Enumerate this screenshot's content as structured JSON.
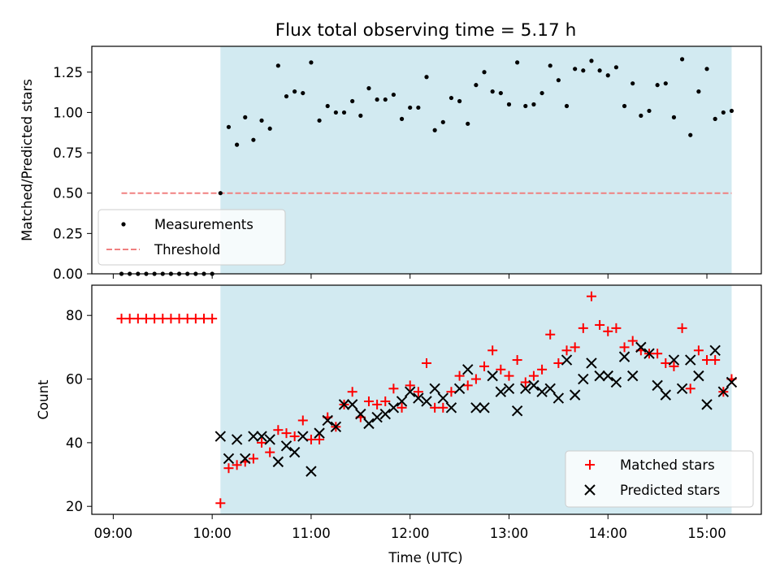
{
  "figure": {
    "title": "Flux total observing time = 5.17 h",
    "xlabel": "Time (UTC)",
    "background": "#ffffff",
    "shade_color": "#add8e6"
  },
  "chart_data": [
    {
      "type": "scatter",
      "title": "Flux total observing time = 5.17 h",
      "ylabel": "Matched/Predicted stars",
      "xlabel": "",
      "xlim": [
        "08:47",
        "15:33"
      ],
      "ylim": [
        0,
        1.41
      ],
      "x_ticks": [
        "09:00",
        "10:00",
        "11:00",
        "12:00",
        "13:00",
        "14:00",
        "15:00"
      ],
      "y_ticks": [
        "0.00",
        "0.25",
        "0.50",
        "0.75",
        "1.00",
        "1.25"
      ],
      "y_tick_values": [
        0,
        0.25,
        0.5,
        0.75,
        1.0,
        1.25
      ],
      "grid": false,
      "legend_position": "lower-left",
      "shaded_interval": [
        "10:05",
        "15:15"
      ],
      "series": [
        {
          "name": "Measurements",
          "kind": "dots",
          "color": "#000000",
          "points": [
            [
              "09:05",
              0
            ],
            [
              "09:10",
              0
            ],
            [
              "09:15",
              0
            ],
            [
              "09:20",
              0
            ],
            [
              "09:25",
              0
            ],
            [
              "09:30",
              0
            ],
            [
              "09:35",
              0
            ],
            [
              "09:40",
              0
            ],
            [
              "09:45",
              0
            ],
            [
              "09:50",
              0
            ],
            [
              "09:55",
              0
            ],
            [
              "10:00",
              0
            ],
            [
              "10:05",
              0.5
            ],
            [
              "10:10",
              0.91
            ],
            [
              "10:15",
              0.8
            ],
            [
              "10:20",
              0.97
            ],
            [
              "10:25",
              0.83
            ],
            [
              "10:30",
              0.95
            ],
            [
              "10:35",
              0.9
            ],
            [
              "10:40",
              1.29
            ],
            [
              "10:45",
              1.1
            ],
            [
              "10:50",
              1.13
            ],
            [
              "10:55",
              1.12
            ],
            [
              "11:00",
              1.31
            ],
            [
              "11:05",
              0.95
            ],
            [
              "11:10",
              1.04
            ],
            [
              "11:15",
              1.0
            ],
            [
              "11:20",
              1.0
            ],
            [
              "11:25",
              1.07
            ],
            [
              "11:30",
              0.98
            ],
            [
              "11:35",
              1.15
            ],
            [
              "11:40",
              1.08
            ],
            [
              "11:45",
              1.08
            ],
            [
              "11:50",
              1.11
            ],
            [
              "11:55",
              0.96
            ],
            [
              "12:00",
              1.03
            ],
            [
              "12:05",
              1.03
            ],
            [
              "12:10",
              1.22
            ],
            [
              "12:15",
              0.89
            ],
            [
              "12:20",
              0.94
            ],
            [
              "12:25",
              1.09
            ],
            [
              "12:30",
              1.07
            ],
            [
              "12:35",
              0.93
            ],
            [
              "12:40",
              1.17
            ],
            [
              "12:45",
              1.25
            ],
            [
              "12:50",
              1.13
            ],
            [
              "12:55",
              1.12
            ],
            [
              "13:00",
              1.05
            ],
            [
              "13:05",
              1.31
            ],
            [
              "13:10",
              1.04
            ],
            [
              "13:15",
              1.05
            ],
            [
              "13:20",
              1.12
            ],
            [
              "13:25",
              1.29
            ],
            [
              "13:30",
              1.2
            ],
            [
              "13:35",
              1.04
            ],
            [
              "13:40",
              1.27
            ],
            [
              "13:45",
              1.26
            ],
            [
              "13:50",
              1.32
            ],
            [
              "13:55",
              1.26
            ],
            [
              "14:00",
              1.23
            ],
            [
              "14:05",
              1.28
            ],
            [
              "14:10",
              1.04
            ],
            [
              "14:15",
              1.18
            ],
            [
              "14:20",
              0.98
            ],
            [
              "14:25",
              1.01
            ],
            [
              "14:30",
              1.17
            ],
            [
              "14:35",
              1.18
            ],
            [
              "14:40",
              0.97
            ],
            [
              "14:45",
              1.33
            ],
            [
              "14:50",
              0.86
            ],
            [
              "14:55",
              1.13
            ],
            [
              "15:00",
              1.27
            ],
            [
              "15:05",
              0.96
            ],
            [
              "15:10",
              1.0
            ],
            [
              "15:15",
              1.01
            ]
          ]
        },
        {
          "name": "Threshold",
          "kind": "dashed-line",
          "color": "#f08080",
          "points": [
            [
              "09:05",
              0.5
            ],
            [
              "15:15",
              0.5
            ]
          ]
        }
      ]
    },
    {
      "type": "scatter",
      "title": "",
      "ylabel": "Count",
      "xlabel": "Time (UTC)",
      "xlim": [
        "08:47",
        "15:33"
      ],
      "ylim": [
        17.5,
        89.5
      ],
      "x_ticks": [
        "09:00",
        "10:00",
        "11:00",
        "12:00",
        "13:00",
        "14:00",
        "15:00"
      ],
      "y_ticks": [
        "20",
        "40",
        "60",
        "80"
      ],
      "y_tick_values": [
        20,
        40,
        60,
        80
      ],
      "grid": false,
      "legend_position": "lower-right",
      "shaded_interval": [
        "10:05",
        "15:15"
      ],
      "series": [
        {
          "name": "Matched stars",
          "kind": "plus",
          "color": "#ff0000",
          "points": [
            [
              "09:05",
              79
            ],
            [
              "09:10",
              79
            ],
            [
              "09:15",
              79
            ],
            [
              "09:20",
              79
            ],
            [
              "09:25",
              79
            ],
            [
              "09:30",
              79
            ],
            [
              "09:35",
              79
            ],
            [
              "09:40",
              79
            ],
            [
              "09:45",
              79
            ],
            [
              "09:50",
              79
            ],
            [
              "09:55",
              79
            ],
            [
              "10:00",
              79
            ],
            [
              "10:05",
              21
            ],
            [
              "10:10",
              32
            ],
            [
              "10:15",
              33
            ],
            [
              "10:20",
              34
            ],
            [
              "10:25",
              35
            ],
            [
              "10:30",
              40
            ],
            [
              "10:35",
              37
            ],
            [
              "10:40",
              44
            ],
            [
              "10:45",
              43
            ],
            [
              "10:50",
              42
            ],
            [
              "10:55",
              47
            ],
            [
              "11:00",
              41
            ],
            [
              "11:05",
              41
            ],
            [
              "11:10",
              48
            ],
            [
              "11:15",
              45
            ],
            [
              "11:20",
              52
            ],
            [
              "11:25",
              56
            ],
            [
              "11:30",
              48
            ],
            [
              "11:35",
              53
            ],
            [
              "11:40",
              52
            ],
            [
              "11:45",
              53
            ],
            [
              "11:50",
              57
            ],
            [
              "11:55",
              51
            ],
            [
              "12:00",
              58
            ],
            [
              "12:05",
              56
            ],
            [
              "12:10",
              65
            ],
            [
              "12:15",
              51
            ],
            [
              "12:20",
              51
            ],
            [
              "12:25",
              56
            ],
            [
              "12:30",
              61
            ],
            [
              "12:35",
              58
            ],
            [
              "12:40",
              60
            ],
            [
              "12:45",
              64
            ],
            [
              "12:50",
              69
            ],
            [
              "12:55",
              63
            ],
            [
              "13:00",
              61
            ],
            [
              "13:05",
              66
            ],
            [
              "13:10",
              59
            ],
            [
              "13:15",
              61
            ],
            [
              "13:20",
              63
            ],
            [
              "13:25",
              74
            ],
            [
              "13:30",
              65
            ],
            [
              "13:35",
              69
            ],
            [
              "13:40",
              70
            ],
            [
              "13:45",
              76
            ],
            [
              "13:50",
              86
            ],
            [
              "13:55",
              77
            ],
            [
              "14:00",
              75
            ],
            [
              "14:05",
              76
            ],
            [
              "14:10",
              70
            ],
            [
              "14:15",
              72
            ],
            [
              "14:20",
              69
            ],
            [
              "14:25",
              68
            ],
            [
              "14:30",
              68
            ],
            [
              "14:35",
              65
            ],
            [
              "14:40",
              64
            ],
            [
              "14:45",
              76
            ],
            [
              "14:50",
              57
            ],
            [
              "14:55",
              69
            ],
            [
              "15:00",
              66
            ],
            [
              "15:05",
              66
            ],
            [
              "15:10",
              56
            ],
            [
              "15:15",
              60
            ]
          ]
        },
        {
          "name": "Predicted stars",
          "kind": "cross",
          "color": "#000000",
          "points": [
            [
              "10:05",
              42
            ],
            [
              "10:10",
              35
            ],
            [
              "10:15",
              41
            ],
            [
              "10:20",
              35
            ],
            [
              "10:25",
              42
            ],
            [
              "10:30",
              42
            ],
            [
              "10:35",
              41
            ],
            [
              "10:40",
              34
            ],
            [
              "10:45",
              39
            ],
            [
              "10:50",
              37
            ],
            [
              "10:55",
              42
            ],
            [
              "11:00",
              31
            ],
            [
              "11:05",
              43
            ],
            [
              "11:10",
              47
            ],
            [
              "11:15",
              45
            ],
            [
              "11:20",
              52
            ],
            [
              "11:25",
              52
            ],
            [
              "11:30",
              49
            ],
            [
              "11:35",
              46
            ],
            [
              "11:40",
              48
            ],
            [
              "11:45",
              49
            ],
            [
              "11:50",
              51
            ],
            [
              "11:55",
              53
            ],
            [
              "12:00",
              56
            ],
            [
              "12:05",
              54
            ],
            [
              "12:10",
              53
            ],
            [
              "12:15",
              57
            ],
            [
              "12:20",
              54
            ],
            [
              "12:25",
              51
            ],
            [
              "12:30",
              57
            ],
            [
              "12:35",
              63
            ],
            [
              "12:40",
              51
            ],
            [
              "12:45",
              51
            ],
            [
              "12:50",
              61
            ],
            [
              "12:55",
              56
            ],
            [
              "13:00",
              57
            ],
            [
              "13:05",
              50
            ],
            [
              "13:10",
              57
            ],
            [
              "13:15",
              58
            ],
            [
              "13:20",
              56
            ],
            [
              "13:25",
              57
            ],
            [
              "13:30",
              54
            ],
            [
              "13:35",
              66
            ],
            [
              "13:40",
              55
            ],
            [
              "13:45",
              60
            ],
            [
              "13:50",
              65
            ],
            [
              "13:55",
              61
            ],
            [
              "14:00",
              61
            ],
            [
              "14:05",
              59
            ],
            [
              "14:10",
              67
            ],
            [
              "14:15",
              61
            ],
            [
              "14:20",
              70
            ],
            [
              "14:25",
              68
            ],
            [
              "14:30",
              58
            ],
            [
              "14:35",
              55
            ],
            [
              "14:40",
              66
            ],
            [
              "14:45",
              57
            ],
            [
              "14:50",
              66
            ],
            [
              "14:55",
              61
            ],
            [
              "15:00",
              52
            ],
            [
              "15:05",
              69
            ],
            [
              "15:10",
              56
            ],
            [
              "15:15",
              59
            ]
          ]
        }
      ]
    }
  ]
}
